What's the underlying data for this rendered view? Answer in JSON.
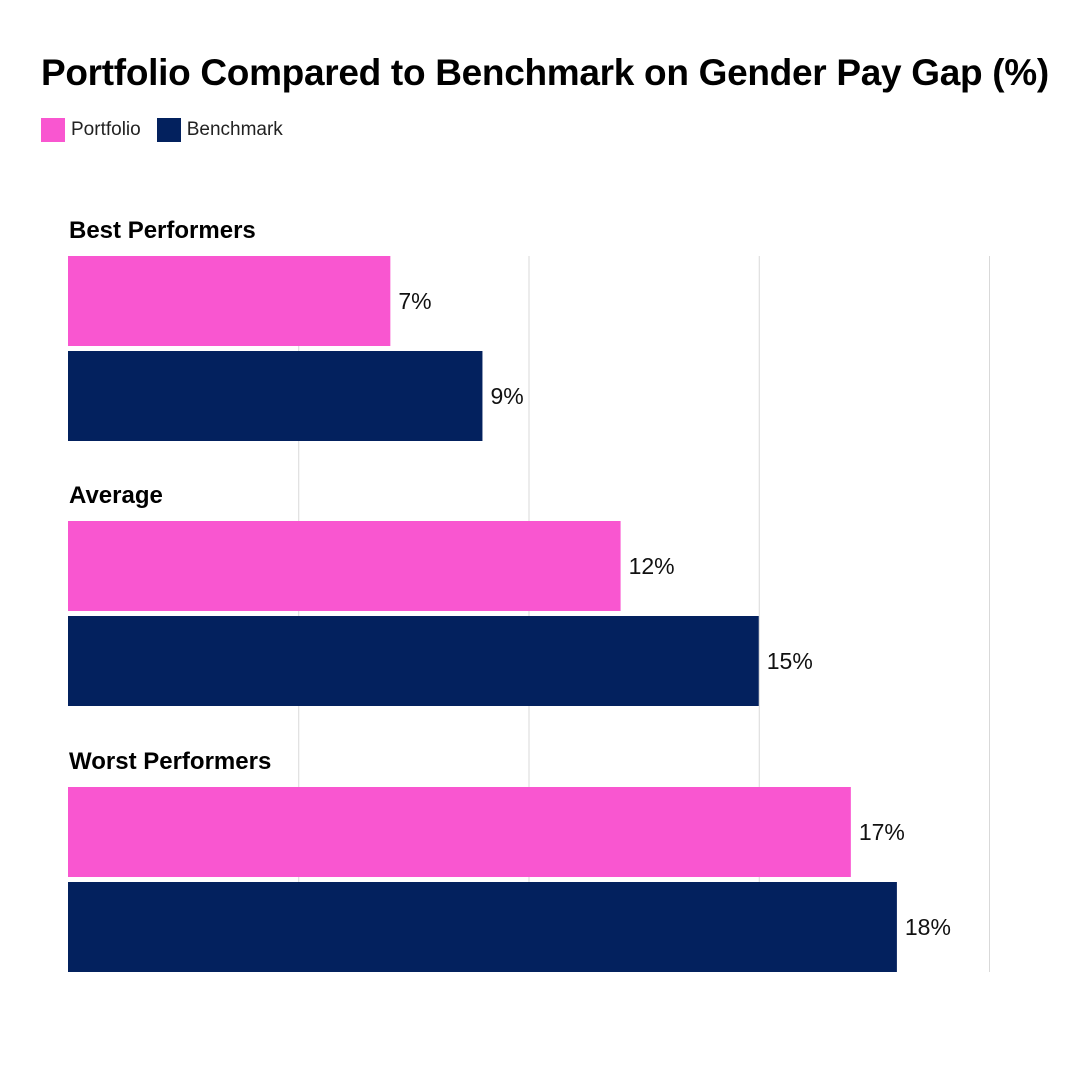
{
  "chart_data": {
    "type": "bar",
    "orientation": "horizontal",
    "title": "Portfolio Compared to Benchmark on Gender Pay Gap (%)",
    "categories": [
      "Best Performers",
      "Average",
      "Worst Performers"
    ],
    "series": [
      {
        "name": "Portfolio",
        "values": [
          7,
          12,
          17
        ],
        "labels": [
          "7%",
          "12%",
          "17%"
        ],
        "color": "#f956d0"
      },
      {
        "name": "Benchmark",
        "values": [
          9,
          15,
          18
        ],
        "labels": [
          "9%",
          "15%",
          "18%"
        ],
        "color": "#03215e"
      }
    ],
    "xlim": [
      0,
      20
    ],
    "grid": true,
    "legend_position": "top-left"
  }
}
